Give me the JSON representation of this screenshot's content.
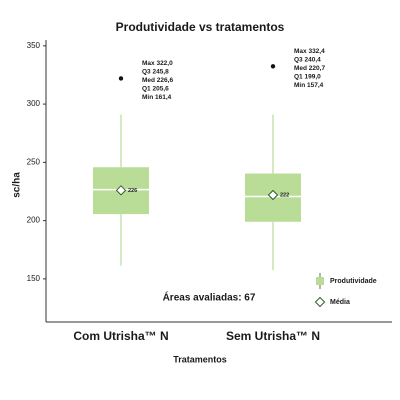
{
  "chart_data": {
    "type": "box",
    "title": "Produtividade vs tratamentos",
    "y_label": "sc/ha",
    "x_label": "Tratamentos",
    "annotation": "Áreas avaliadas: 67",
    "categories": [
      "Com Utrisha™ N",
      "Sem Utrisha™ N"
    ],
    "series": [
      {
        "name": "Produtividade",
        "color": "#b9dc97",
        "boxes": [
          {
            "max": 322.0,
            "q3": 245.8,
            "median": 226.6,
            "q1": 205.6,
            "min": 161.4,
            "whisker_high": 291,
            "mean": 226,
            "stat_labels": [
              "Max 322,0",
              "Q3 245,8",
              "Med 226,6",
              "Q1 205,6",
              "Min 161,4"
            ]
          },
          {
            "max": 332.4,
            "q3": 240.4,
            "median": 220.7,
            "q1": 199.0,
            "min": 157.4,
            "whisker_high": 291,
            "mean": 222,
            "stat_labels": [
              "Max 332,4",
              "Q3 240,4",
              "Med 220,7",
              "Q1 199,0",
              "Min 157,4"
            ]
          }
        ]
      }
    ],
    "mean_name": "Média",
    "ylim": [
      113,
      355
    ],
    "yticks": [
      150,
      200,
      250,
      300,
      350
    ]
  }
}
